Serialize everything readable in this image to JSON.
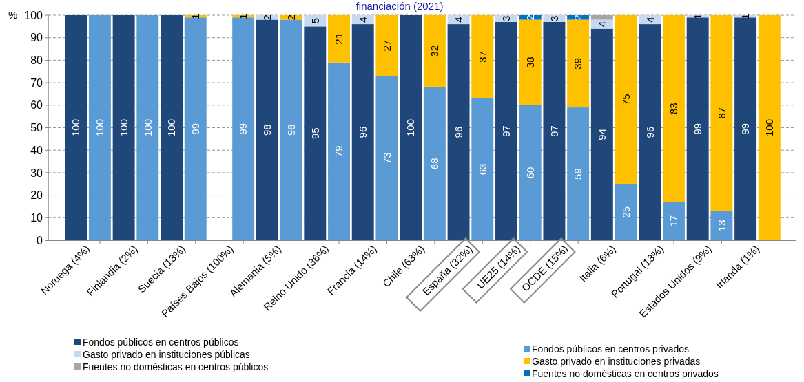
{
  "chart_data": {
    "type": "bar",
    "stacked": true,
    "title": "financiación (2021)",
    "ylabel": "%",
    "categories": [
      "Noruega (4%)",
      null,
      "Finlandia (2%)",
      null,
      "Suecia (13%)",
      null,
      "Países Bajos (100%)",
      null,
      "Alemania (5%)",
      null,
      "Reino Unido (36%)",
      null,
      "Francia (14%)",
      null,
      "Chile (63%)",
      null,
      "España (32%)",
      null,
      "UE25 (14%)",
      null,
      "OCDE (15%)",
      null,
      "Italia (6%)",
      null,
      "Portugal (13%)",
      null,
      "Estados Unidos (9%)",
      null,
      "Irlanda (1%)",
      null
    ],
    "ylim": [
      0,
      100
    ],
    "yticks": [
      0,
      10,
      20,
      30,
      40,
      50,
      60,
      70,
      80,
      90,
      100
    ],
    "grid": true,
    "legend": "bottom",
    "series": [
      {
        "name": "Fondos públicos en centros públicos",
        "color": "#1f477a",
        "values": [
          100,
          null,
          100,
          null,
          100,
          null,
          null,
          null,
          98,
          null,
          95,
          null,
          96,
          null,
          100,
          null,
          96,
          null,
          97,
          null,
          97,
          null,
          94,
          null,
          96,
          null,
          99,
          null,
          99,
          null
        ],
        "value_labels": [
          "100",
          null,
          "100",
          null,
          "100",
          null,
          null,
          null,
          "98",
          null,
          "95",
          null,
          "96",
          null,
          "100",
          null,
          "96",
          null,
          "97",
          null,
          "97",
          null,
          "94",
          null,
          "96",
          null,
          "99",
          null,
          "99",
          null
        ]
      },
      {
        "name": "Gasto privado en instituciones públicas",
        "color": "#c6d9f1",
        "values": [
          null,
          null,
          null,
          null,
          null,
          null,
          null,
          null,
          2,
          null,
          5,
          null,
          4,
          null,
          null,
          null,
          4,
          null,
          3,
          null,
          3,
          null,
          4,
          null,
          4,
          null,
          1,
          null,
          1,
          null
        ],
        "value_labels": [
          null,
          null,
          null,
          null,
          null,
          null,
          null,
          null,
          "2",
          null,
          "5",
          null,
          "4",
          null,
          null,
          null,
          "4",
          null,
          "3",
          null,
          "3",
          null,
          "4",
          null,
          "4",
          null,
          "1",
          null,
          "1",
          null
        ]
      },
      {
        "name": "Fuentes no domésticas en centros públicos",
        "color": "#a6a6a6",
        "values": [
          null,
          null,
          null,
          null,
          null,
          null,
          null,
          null,
          null,
          null,
          null,
          null,
          null,
          null,
          null,
          null,
          null,
          null,
          null,
          null,
          null,
          null,
          2,
          null,
          null,
          null,
          null,
          null,
          null,
          null
        ],
        "value_labels": [
          null,
          null,
          null,
          null,
          null,
          null,
          null,
          null,
          null,
          null,
          null,
          null,
          null,
          null,
          null,
          null,
          null,
          null,
          null,
          null,
          null,
          null,
          null,
          null,
          null,
          null,
          null,
          null,
          null,
          null
        ]
      },
      {
        "name": "Fondos públicos en centros privados",
        "color": "#5b9bd5",
        "values": [
          null,
          100,
          null,
          100,
          null,
          99,
          null,
          99,
          null,
          98,
          null,
          79,
          null,
          73,
          null,
          68,
          null,
          63,
          null,
          60,
          null,
          59,
          null,
          25,
          null,
          17,
          null,
          13,
          null,
          null
        ],
        "value_labels": [
          null,
          "100",
          null,
          "100",
          null,
          "99",
          null,
          "99",
          null,
          "98",
          null,
          "79",
          null,
          "73",
          null,
          "68",
          null,
          "63",
          null,
          "60",
          null,
          "59",
          null,
          "25",
          null,
          "17",
          null,
          "13",
          null,
          null
        ]
      },
      {
        "name": "Gasto privado en instituciones privadas",
        "color": "#ffc000",
        "values": [
          null,
          null,
          null,
          null,
          null,
          1,
          null,
          1,
          null,
          2,
          null,
          21,
          null,
          27,
          null,
          32,
          null,
          37,
          null,
          38,
          null,
          39,
          null,
          75,
          null,
          83,
          null,
          87,
          null,
          100
        ],
        "value_labels": [
          null,
          null,
          null,
          null,
          null,
          "1",
          null,
          "1",
          null,
          "2",
          null,
          "21",
          null,
          "27",
          null,
          "32",
          null,
          "37",
          null,
          "38",
          null,
          "39",
          null,
          "75",
          null,
          "83",
          null,
          "87",
          null,
          "100"
        ]
      },
      {
        "name": "Fuentes no domésticas en centros privados",
        "color": "#0070c0",
        "values": [
          null,
          null,
          null,
          null,
          null,
          null,
          null,
          null,
          null,
          null,
          null,
          null,
          null,
          null,
          null,
          null,
          null,
          null,
          null,
          2,
          null,
          2,
          null,
          null,
          null,
          null,
          null,
          null,
          null,
          null
        ],
        "value_labels": [
          null,
          null,
          null,
          null,
          null,
          null,
          null,
          null,
          null,
          null,
          null,
          null,
          null,
          null,
          null,
          null,
          null,
          null,
          null,
          "2",
          null,
          "2",
          null,
          null,
          null,
          null,
          null,
          null,
          null,
          null
        ]
      }
    ]
  }
}
